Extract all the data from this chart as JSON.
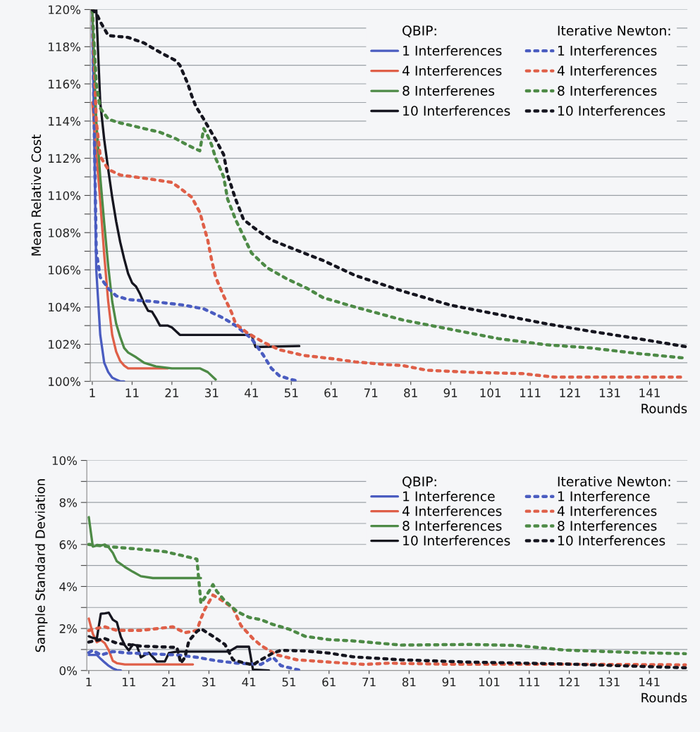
{
  "chart_data": [
    {
      "type": "line",
      "ylabel": "Mean Relative Cost",
      "xlabel": "Rounds",
      "annotations": [
        "QBIP:",
        "Iterative Newton:"
      ],
      "xlim": [
        0.5,
        150.5
      ],
      "xticks": [
        1,
        11,
        21,
        31,
        41,
        51,
        61,
        71,
        81,
        91,
        101,
        111,
        121,
        131,
        141
      ],
      "ylim": [
        100,
        120
      ],
      "yticks": [
        {
          "value": 100,
          "label": "100%"
        },
        {
          "value": 101,
          "label": null
        },
        {
          "value": 102,
          "label": "102%"
        },
        {
          "value": 103,
          "label": null
        },
        {
          "value": 104,
          "label": "104%"
        },
        {
          "value": 105,
          "label": null
        },
        {
          "value": 106,
          "label": "106%"
        },
        {
          "value": 107,
          "label": null
        },
        {
          "value": 108,
          "label": "108%"
        },
        {
          "value": 109,
          "label": null
        },
        {
          "value": 110,
          "label": "110%"
        },
        {
          "value": 111,
          "label": null
        },
        {
          "value": 112,
          "label": "112%"
        },
        {
          "value": 113,
          "label": null
        },
        {
          "value": 114,
          "label": "114%"
        },
        {
          "value": 115,
          "label": null
        },
        {
          "value": 116,
          "label": "116%"
        },
        {
          "value": 117,
          "label": null
        },
        {
          "value": 118,
          "label": "118%"
        },
        {
          "value": 119,
          "label": null
        },
        {
          "value": 120,
          "label": "120%"
        }
      ],
      "grid": "y",
      "legend": "top right",
      "marker": "none",
      "series": [
        {
          "name": "1 Interferences",
          "color": "#4a5cc0",
          "line_style": "solid",
          "x": [
            1,
            2,
            3,
            4,
            5,
            6,
            7,
            8,
            9
          ],
          "values": [
            120,
            106,
            102.5,
            101,
            100.5,
            100.2,
            100.1,
            100,
            100
          ]
        },
        {
          "name": "4 Interferences",
          "color": "#df5f48",
          "line_style": "solid",
          "x": [
            1,
            2,
            3,
            4,
            5,
            6,
            7,
            8,
            9,
            10,
            11,
            20
          ],
          "values": [
            115,
            112.3,
            109.7,
            106.8,
            104.3,
            102.5,
            101.6,
            101.1,
            100.85,
            100.7,
            100.7,
            100.7
          ]
        },
        {
          "name": "8 Interferenes",
          "color": "#4d8a46",
          "line_style": "solid",
          "x": [
            1,
            2,
            3,
            4,
            5,
            6,
            7,
            8,
            9,
            10,
            12,
            14,
            17,
            21,
            28,
            30,
            32
          ],
          "values": [
            120,
            114,
            111,
            108.5,
            106.2,
            104.3,
            103.1,
            102.4,
            101.8,
            101.55,
            101.3,
            101,
            100.8,
            100.7,
            100.7,
            100.5,
            100.1
          ]
        },
        {
          "name": "10 Interferences",
          "color": "#15151f",
          "line_style": "solid",
          "x": [
            1,
            2,
            3,
            4,
            5,
            6,
            7,
            8,
            9,
            10,
            11,
            12,
            13,
            14,
            15,
            16,
            17,
            18,
            20,
            21,
            23,
            41,
            42,
            53
          ],
          "values": [
            120,
            120,
            115,
            113,
            111.4,
            109.9,
            108.6,
            107.5,
            106.6,
            105.8,
            105.3,
            105.1,
            104.7,
            104.2,
            103.8,
            103.75,
            103.4,
            103,
            103,
            102.9,
            102.5,
            102.5,
            101.85,
            101.9
          ]
        },
        {
          "name": "1 Interferences",
          "color": "#4a5cc0",
          "line_style": "dotted",
          "x": [
            1,
            2,
            3,
            5,
            7,
            10,
            16,
            24,
            29,
            34,
            37,
            41,
            44,
            46,
            48,
            51,
            53
          ],
          "values": [
            120,
            107,
            105.6,
            105,
            104.6,
            104.4,
            104.3,
            104.1,
            103.9,
            103.4,
            103,
            102.3,
            101.4,
            100.7,
            100.3,
            100.1,
            100
          ]
        },
        {
          "name": "4 Interferences",
          "color": "#df5f48",
          "line_style": "dotted",
          "x": [
            1,
            2,
            3,
            5,
            8,
            15,
            21,
            23,
            26,
            28,
            30,
            31,
            32,
            34,
            36,
            37,
            40,
            44,
            48,
            54,
            62,
            67,
            75,
            79,
            85,
            97,
            109,
            117,
            149,
            150
          ],
          "values": [
            120,
            114,
            112.1,
            111.4,
            111.1,
            110.9,
            110.7,
            110.4,
            109.9,
            109.1,
            107.6,
            106.5,
            105.6,
            104.6,
            103.7,
            103.1,
            102.6,
            102.1,
            101.7,
            101.4,
            101.2,
            101.05,
            100.9,
            100.85,
            100.6,
            100.48,
            100.42,
            100.23,
            100.23,
            100.16
          ]
        },
        {
          "name": "8 Interferences",
          "color": "#4d8a46",
          "line_style": "dotted",
          "x": [
            1,
            2,
            3,
            5,
            8,
            13,
            18,
            22,
            25,
            28,
            29,
            30,
            31,
            32,
            34,
            35,
            37,
            39,
            41,
            45,
            50,
            55,
            59,
            67,
            79,
            91,
            103,
            115,
            126,
            138,
            150
          ],
          "values": [
            120,
            116,
            114.7,
            114.1,
            113.9,
            113.65,
            113.4,
            113.05,
            112.7,
            112.4,
            113.6,
            113.2,
            112.7,
            112,
            111,
            109.8,
            108.7,
            107.8,
            106.9,
            106.1,
            105.5,
            105,
            104.5,
            104,
            103.3,
            102.8,
            102.3,
            101.97,
            101.8,
            101.5,
            101.25
          ]
        },
        {
          "name": "10 Interferences",
          "color": "#15151f",
          "line_style": "dotted",
          "x": [
            1,
            2,
            3,
            5,
            10,
            14,
            18,
            22,
            23,
            25,
            26,
            27,
            29,
            32,
            34,
            35,
            37,
            39,
            42,
            46,
            53,
            59,
            67,
            79,
            91,
            103,
            115,
            126,
            138,
            150
          ],
          "values": [
            120,
            119.8,
            119.35,
            118.6,
            118.5,
            118.2,
            117.7,
            117.25,
            117,
            116,
            115.35,
            114.8,
            114.1,
            113,
            112.2,
            111.1,
            109.8,
            108.7,
            108.2,
            107.6,
            107,
            106.5,
            105.7,
            104.85,
            104.1,
            103.6,
            103.1,
            102.7,
            102.3,
            101.87
          ]
        }
      ]
    },
    {
      "type": "line",
      "ylabel": "Sample Standard Deviation",
      "xlabel": "Rounds",
      "annotations": [
        "QBIP:",
        "Iterative Newton:"
      ],
      "xlim": [
        0.5,
        150.5
      ],
      "xticks": [
        1,
        11,
        21,
        31,
        41,
        51,
        61,
        71,
        81,
        91,
        101,
        111,
        121,
        131,
        141
      ],
      "ylim": [
        0,
        10
      ],
      "yticks": [
        {
          "value": 0,
          "label": "0%"
        },
        {
          "value": 1,
          "label": null
        },
        {
          "value": 2,
          "label": "2%"
        },
        {
          "value": 3,
          "label": null
        },
        {
          "value": 4,
          "label": "4%"
        },
        {
          "value": 5,
          "label": null
        },
        {
          "value": 6,
          "label": "6%"
        },
        {
          "value": 7,
          "label": null
        },
        {
          "value": 8,
          "label": "8%"
        },
        {
          "value": 9,
          "label": null
        },
        {
          "value": 10,
          "label": "10%"
        }
      ],
      "grid": "y",
      "legend": "top right",
      "marker": "none",
      "series": [
        {
          "name": "1 Interference",
          "color": "#4a5cc0",
          "line_style": "solid",
          "x": [
            1,
            2,
            3,
            4,
            5,
            6,
            7,
            8,
            9
          ],
          "values": [
            0.74,
            0.74,
            0.74,
            0.55,
            0.38,
            0.22,
            0.1,
            0.02,
            0
          ]
        },
        {
          "name": "4 Interferences",
          "color": "#df5f48",
          "line_style": "solid",
          "x": [
            1,
            2,
            3,
            4,
            5,
            6,
            7,
            8,
            10,
            27
          ],
          "values": [
            2.47,
            1.75,
            1.35,
            1.45,
            1.3,
            0.96,
            0.46,
            0.35,
            0.29,
            0.29
          ]
        },
        {
          "name": "8 Interferences",
          "color": "#4d8a46",
          "line_style": "solid",
          "x": [
            1,
            2,
            3,
            4,
            5,
            6,
            7,
            8,
            10,
            12,
            14,
            17,
            29
          ],
          "values": [
            7.3,
            5.9,
            5.95,
            5.95,
            6,
            5.85,
            5.6,
            5.2,
            4.93,
            4.7,
            4.49,
            4.4,
            4.4
          ]
        },
        {
          "name": "10 Interferences",
          "color": "#15151f",
          "line_style": "solid",
          "x": [
            1,
            2,
            3,
            4,
            5,
            6,
            7,
            8,
            9,
            10,
            11,
            12,
            13,
            14,
            16,
            18,
            20,
            21,
            23,
            36,
            38,
            41,
            42,
            46
          ],
          "values": [
            1.63,
            1.55,
            1.52,
            2.7,
            2.72,
            2.75,
            2.42,
            2.3,
            1.6,
            1.2,
            0.96,
            1.24,
            1.19,
            0.63,
            0.85,
            0.43,
            0.43,
            0.83,
            0.9,
            0.9,
            1.13,
            1.13,
            0.04,
            0
          ]
        },
        {
          "name": "1 Interference",
          "color": "#4a5cc0",
          "line_style": "dotted",
          "x": [
            1,
            2,
            4,
            7,
            11,
            17,
            23,
            28,
            33,
            38,
            44,
            47,
            49,
            52,
            54
          ],
          "values": [
            0.85,
            0.96,
            0.74,
            0.9,
            0.83,
            0.79,
            0.74,
            0.63,
            0.46,
            0.35,
            0.29,
            0.63,
            0.23,
            0.09,
            0
          ]
        },
        {
          "name": "4 Interferences",
          "color": "#df5f48",
          "line_style": "dotted",
          "x": [
            1,
            2,
            5,
            8,
            14,
            22,
            25,
            28,
            29,
            30,
            32,
            34,
            37,
            39,
            42,
            44,
            48,
            53,
            61,
            70,
            76,
            90,
            120,
            150
          ],
          "values": [
            1.9,
            1.97,
            2.08,
            1.91,
            1.91,
            2.08,
            1.8,
            1.91,
            2.47,
            2.92,
            3.59,
            3.37,
            2.98,
            2.14,
            1.52,
            1.19,
            0.74,
            0.51,
            0.4,
            0.29,
            0.35,
            0.3,
            0.3,
            0.27
          ]
        },
        {
          "name": "8 Interferences",
          "color": "#4d8a46",
          "line_style": "dotted",
          "x": [
            1,
            7,
            14,
            20,
            25,
            28,
            29,
            31,
            32,
            33,
            35,
            38,
            41,
            44,
            47,
            51,
            55,
            61,
            67,
            79,
            96,
            108,
            120,
            138,
            150
          ],
          "values": [
            6,
            5.88,
            5.77,
            5.66,
            5.44,
            5.3,
            3.2,
            3.76,
            4.09,
            3.76,
            3.31,
            2.81,
            2.53,
            2.42,
            2.19,
            1.97,
            1.63,
            1.47,
            1.41,
            1.21,
            1.24,
            1.19,
            0.97,
            0.85,
            0.8
          ]
        },
        {
          "name": "10 Interferences",
          "color": "#15151f",
          "line_style": "dotted",
          "x": [
            1,
            2,
            5,
            8,
            14,
            23,
            24,
            25,
            26,
            28,
            29,
            32,
            35,
            37,
            40,
            42,
            44,
            47,
            49,
            55,
            61,
            67,
            79,
            96,
            120,
            150
          ],
          "values": [
            1.35,
            1.4,
            1.52,
            1.3,
            1.16,
            1.1,
            0.35,
            0.63,
            1.41,
            1.86,
            1.99,
            1.63,
            1.24,
            0.51,
            0.35,
            0.27,
            0.51,
            0.83,
            0.96,
            0.93,
            0.83,
            0.65,
            0.51,
            0.4,
            0.31,
            0.13
          ]
        }
      ]
    }
  ]
}
